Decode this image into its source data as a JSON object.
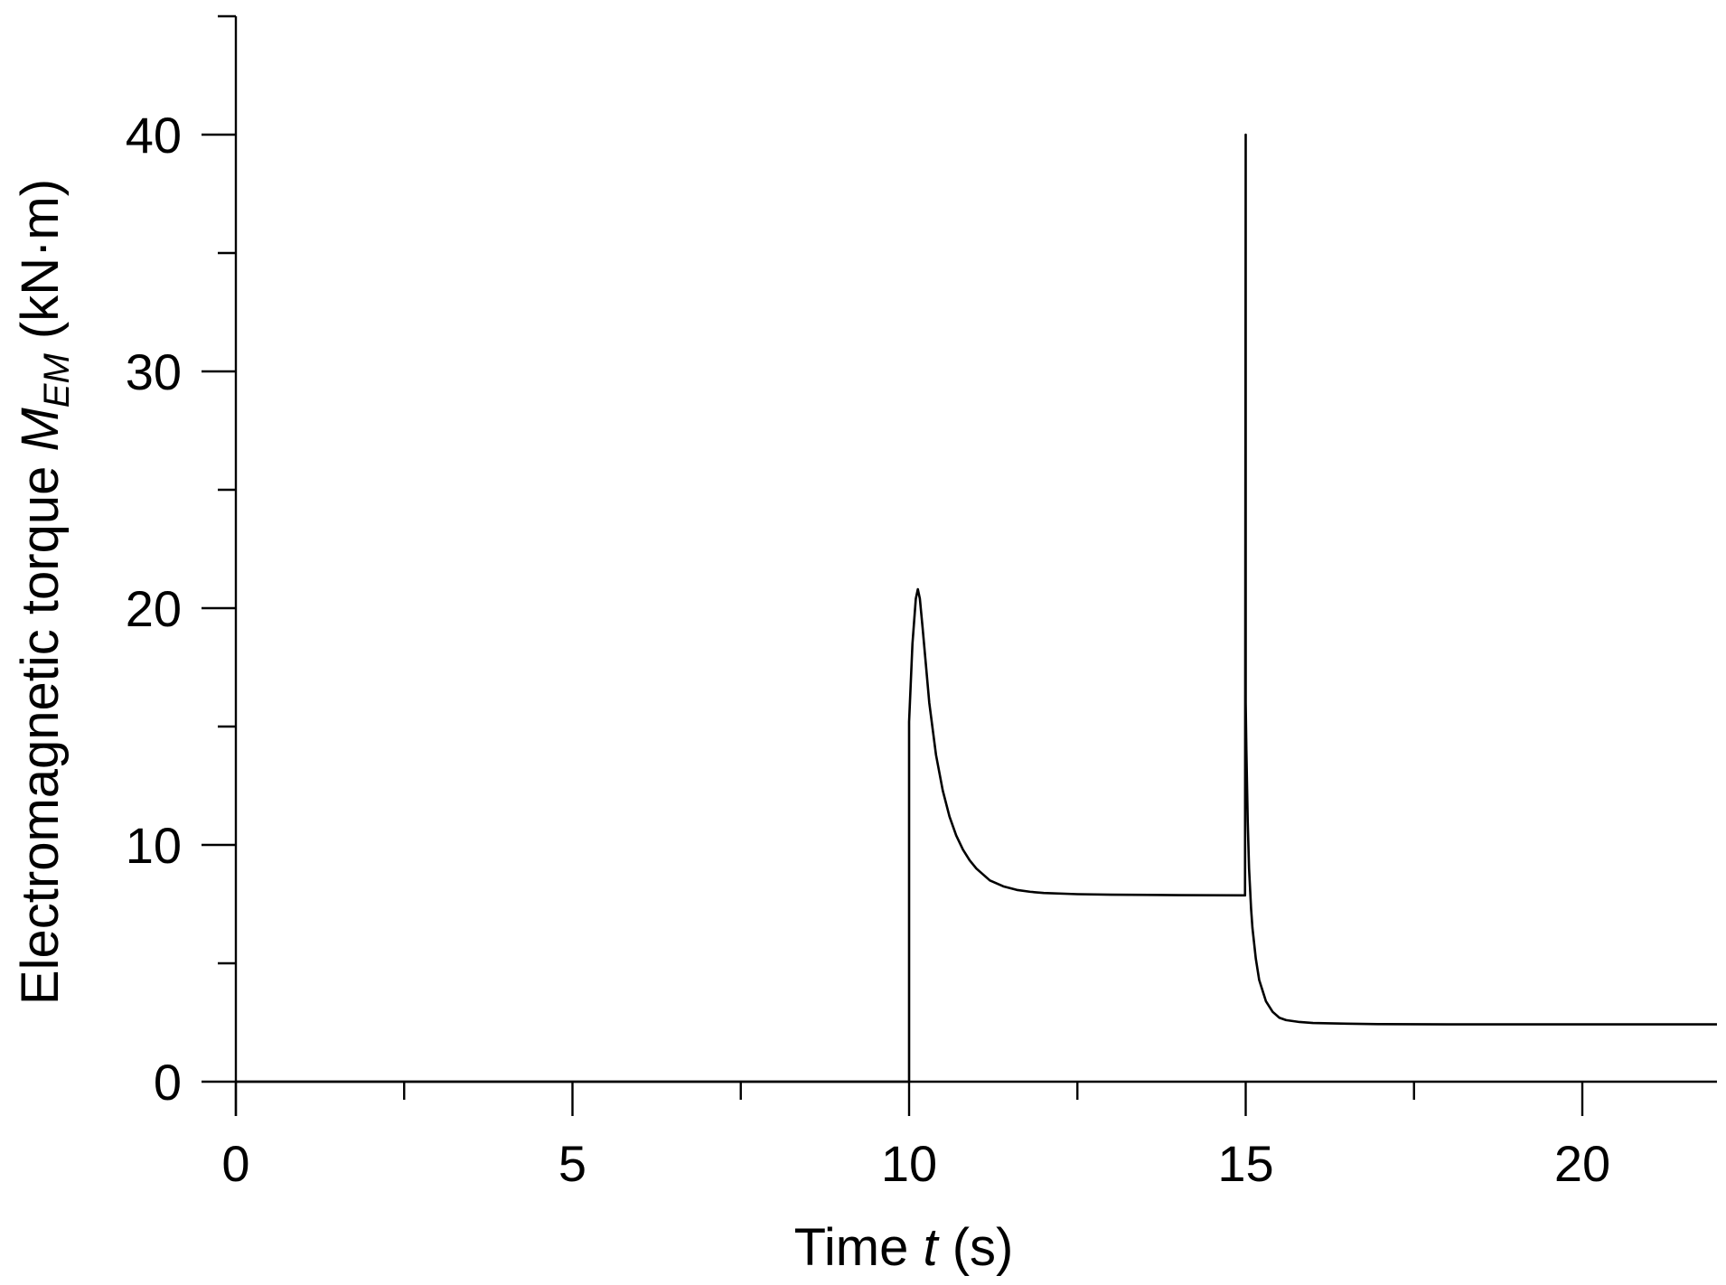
{
  "chart_data": {
    "type": "line",
    "title": "",
    "xlabel": {
      "prefix": "Time ",
      "var": "t",
      "suffix": " (s)"
    },
    "ylabel": {
      "prefix": "Electromagnetic torque ",
      "var": "M",
      "sub": "EM",
      "suffix": " (kN·m)"
    },
    "xlim": [
      0,
      22
    ],
    "ylim": [
      0,
      45
    ],
    "xticks_major": [
      0,
      5,
      10,
      15,
      20
    ],
    "xtick_labels": [
      "0",
      "5",
      "10",
      "15",
      "20"
    ],
    "xticks_minor": [
      2.5,
      7.5,
      12.5,
      17.5
    ],
    "yticks_major": [
      0,
      10,
      20,
      30,
      40
    ],
    "ytick_labels": [
      "0",
      "10",
      "20",
      "30",
      "40"
    ],
    "yticks_minor": [
      5,
      15,
      25,
      35,
      45
    ],
    "grid": false,
    "series": [
      {
        "color": "#000000",
        "x": [
          0,
          9.99,
          10.0,
          10.0,
          10.05,
          10.1,
          10.13,
          10.16,
          10.2,
          10.25,
          10.3,
          10.4,
          10.5,
          10.6,
          10.7,
          10.8,
          10.9,
          11.0,
          11.2,
          11.4,
          11.6,
          11.8,
          12.0,
          12.5,
          13.0,
          14.0,
          14.99,
          15.0,
          15.0,
          15.01,
          15.03,
          15.05,
          15.08,
          15.1,
          15.15,
          15.2,
          15.3,
          15.4,
          15.5,
          15.6,
          15.8,
          16.0,
          16.5,
          17.0,
          18.0,
          20.0,
          22.0
        ],
        "y": [
          0,
          0,
          0,
          15.2,
          18.5,
          20.4,
          20.8,
          20.4,
          19.2,
          17.6,
          16.0,
          13.8,
          12.3,
          11.2,
          10.4,
          9.8,
          9.35,
          9.0,
          8.5,
          8.25,
          8.1,
          8.02,
          7.97,
          7.92,
          7.9,
          7.88,
          7.87,
          40.0,
          16.0,
          14.0,
          11.0,
          9.0,
          7.3,
          6.5,
          5.2,
          4.3,
          3.4,
          2.95,
          2.7,
          2.6,
          2.52,
          2.48,
          2.45,
          2.43,
          2.42,
          2.42,
          2.42
        ]
      }
    ]
  }
}
